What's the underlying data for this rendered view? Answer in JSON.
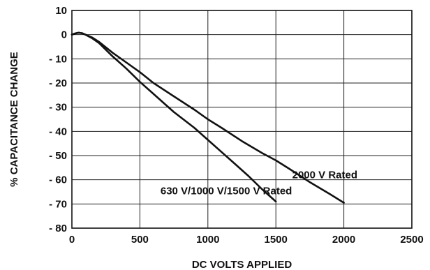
{
  "chart_data": {
    "type": "line",
    "title": "",
    "xlabel": "DC VOLTS APPLIED",
    "ylabel": "% CAPACITANCE CHANGE",
    "xlim": [
      0,
      2500
    ],
    "ylim": [
      -80,
      10
    ],
    "grid": true,
    "x_ticks": [
      0,
      500,
      1000,
      1500,
      2000,
      2500
    ],
    "x_tick_labels": [
      "0",
      "500",
      "1000",
      "1500",
      "2000",
      "2500"
    ],
    "y_ticks": [
      10,
      0,
      -10,
      -20,
      -30,
      -40,
      -50,
      -60,
      -70,
      -80
    ],
    "y_tick_labels": [
      "10",
      "0",
      "- 10",
      "- 20",
      "- 30",
      "- 40",
      "- 50",
      "- 60",
      "- 70",
      "- 80"
    ],
    "series": [
      {
        "name": "630 V/1000 V/1500 V Rated",
        "x": [
          0,
          25,
          50,
          75,
          100,
          150,
          200,
          300,
          400,
          500,
          600,
          750,
          900,
          1000,
          1100,
          1200,
          1300,
          1400,
          1500
        ],
        "y": [
          0,
          0.5,
          0.8,
          0.6,
          0,
          -1.5,
          -3.5,
          -9,
          -14,
          -19.5,
          -24.5,
          -32,
          -38.5,
          -43.5,
          -48.5,
          -53.5,
          -58.5,
          -64,
          -69
        ]
      },
      {
        "name": "2000 V Rated",
        "x": [
          0,
          25,
          50,
          75,
          100,
          150,
          200,
          300,
          400,
          500,
          600,
          750,
          900,
          1000,
          1100,
          1250,
          1400,
          1500,
          1600,
          1750,
          1900,
          2000
        ],
        "y": [
          0,
          0.5,
          0.8,
          0.6,
          0,
          -1.2,
          -3,
          -7.5,
          -11.5,
          -15.5,
          -20,
          -25.5,
          -31,
          -35,
          -38.5,
          -44,
          -49,
          -52,
          -55.5,
          -61,
          -66,
          -69.5
        ]
      }
    ],
    "annotations": [
      {
        "text": "2000 V Rated",
        "x": 1860,
        "y": -58
      },
      {
        "text": "630 V/1000 V/1500 V Rated",
        "x": 1135,
        "y": -64.5
      }
    ]
  }
}
